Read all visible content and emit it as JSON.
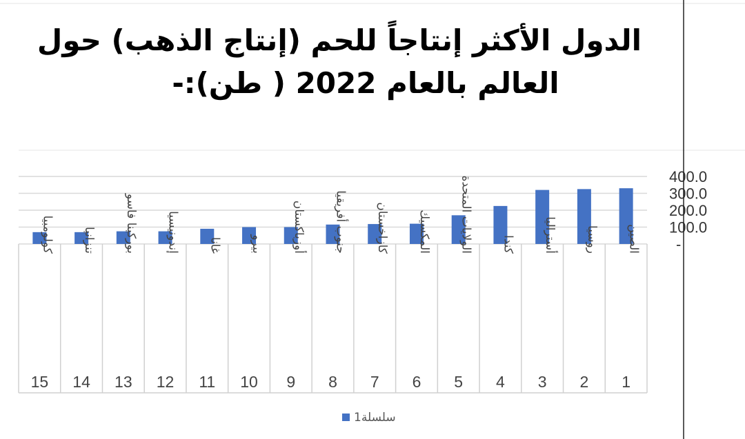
{
  "chart_data": {
    "type": "bar",
    "title_lines": [
      "الدول الأكثر إنتاجاً للحم (إنتاج الذهب) حول",
      "العالم بالعام 2022 ( طن):-"
    ],
    "categories": [
      "الصين",
      "روسيا",
      "أستراليا",
      "كندا",
      "الولايات المتحدة",
      "المكسيك",
      "كازاخستان",
      "جنوب أفريقيا",
      "أوزباكستان",
      "بيرو",
      "غانا",
      "إندونيسيا",
      "بوركينا فاسو",
      "تنزانيا",
      "كولومبيا"
    ],
    "ranks": [
      "1",
      "2",
      "3",
      "4",
      "5",
      "6",
      "7",
      "8",
      "9",
      "10",
      "11",
      "12",
      "13",
      "14",
      "15"
    ],
    "series": [
      {
        "name": "سلسلة1",
        "color": "#4472C4",
        "values": [
          330,
          325,
          320,
          225,
          170,
          120,
          118,
          115,
          100,
          100,
          90,
          75,
          75,
          70,
          70
        ]
      }
    ],
    "ylim": [
      0,
      400
    ],
    "yticks": [
      "400.0",
      "300.0",
      "200.0",
      "100.0",
      "-"
    ],
    "ytick_values": [
      400,
      300,
      200,
      100,
      0
    ],
    "grid": true,
    "legend_position": "bottom"
  }
}
